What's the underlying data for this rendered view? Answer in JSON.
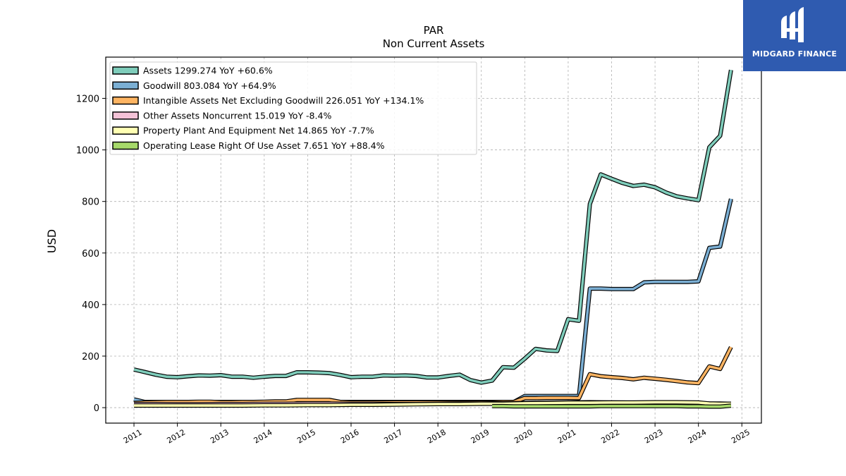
{
  "brand": {
    "name": "MIDGARD FINANCE",
    "color": "#2f5bb0",
    "icon": "midgard-logo-icon"
  },
  "chart_data": {
    "type": "line",
    "title": "PAR",
    "subtitle": "Non Current  Assets",
    "ylabel": "USD",
    "xlabel": "",
    "ylim": [
      -60,
      1360
    ],
    "xlim": [
      2010.35,
      2025.45
    ],
    "yticks": [
      0,
      200,
      400,
      600,
      800,
      1000,
      1200
    ],
    "xticks": [
      2011,
      2012,
      2013,
      2014,
      2015,
      2016,
      2017,
      2018,
      2019,
      2020,
      2021,
      2022,
      2023,
      2024,
      2025
    ],
    "grid": true,
    "legend_position": "top-left",
    "series": [
      {
        "name": "Assets  1299.274 YoY +60.6%",
        "color": "#7fcdbb",
        "x": [
          2011.0,
          2011.25,
          2011.5,
          2011.75,
          2012.0,
          2012.25,
          2012.5,
          2012.75,
          2013.0,
          2013.25,
          2013.5,
          2013.75,
          2014.0,
          2014.25,
          2014.5,
          2014.75,
          2015.0,
          2015.25,
          2015.5,
          2015.75,
          2016.0,
          2016.25,
          2016.5,
          2016.75,
          2017.0,
          2017.25,
          2017.5,
          2017.75,
          2018.0,
          2018.25,
          2018.5,
          2018.75,
          2019.0,
          2019.25,
          2019.5,
          2019.75,
          2020.0,
          2020.25,
          2020.5,
          2020.75,
          2021.0,
          2021.25,
          2021.5,
          2021.75,
          2022.0,
          2022.25,
          2022.5,
          2022.75,
          2023.0,
          2023.25,
          2023.5,
          2023.75,
          2024.0,
          2024.25,
          2024.5,
          2024.75
        ],
        "values": [
          148,
          138,
          128,
          120,
          118,
          122,
          125,
          124,
          126,
          120,
          120,
          116,
          120,
          123,
          123,
          137,
          137,
          136,
          134,
          127,
          118,
          120,
          120,
          125,
          124,
          125,
          123,
          117,
          117,
          123,
          128,
          107,
          97,
          105,
          157,
          155,
          190,
          228,
          222,
          220,
          343,
          337,
          790,
          905,
          888,
          872,
          860,
          865,
          855,
          835,
          820,
          812,
          805,
          1010,
          1055,
          1310
        ]
      },
      {
        "name": "Goodwill  803.084 YoY +64.9%",
        "color": "#7bafd4",
        "x": [
          2011.0,
          2011.25,
          2011.5,
          2011.75,
          2012.0,
          2012.25,
          2012.5,
          2012.75,
          2013.0,
          2013.25,
          2013.5,
          2013.75,
          2014.0,
          2014.25,
          2014.5,
          2014.75,
          2015.0,
          2015.25,
          2015.5,
          2015.75,
          2016.0,
          2016.25,
          2016.5,
          2016.75,
          2017.0,
          2017.25,
          2017.5,
          2017.75,
          2018.0,
          2018.25,
          2018.5,
          2018.75,
          2019.0,
          2019.25,
          2019.5,
          2019.75,
          2020.0,
          2020.25,
          2020.5,
          2020.75,
          2021.0,
          2021.25,
          2021.5,
          2021.75,
          2022.0,
          2022.25,
          2022.5,
          2022.75,
          2023.0,
          2023.25,
          2023.5,
          2023.75,
          2024.0,
          2024.25,
          2024.5,
          2024.75
        ],
        "values": [
          32,
          22,
          22,
          22,
          22,
          22,
          22,
          22,
          22,
          22,
          22,
          22,
          22,
          22,
          22,
          22,
          22,
          22,
          22,
          22,
          22,
          22,
          22,
          22,
          22,
          22,
          22,
          22,
          22,
          22,
          22,
          22,
          22,
          22,
          22,
          22,
          45,
          45,
          45,
          45,
          45,
          45,
          462,
          462,
          460,
          460,
          460,
          486,
          488,
          488,
          488,
          488,
          490,
          620,
          625,
          810
        ]
      },
      {
        "name": "Intangible Assets Net Excluding Goodwill  226.051 YoY +134.1%",
        "color": "#fdb462",
        "x": [
          2011.0,
          2011.25,
          2011.5,
          2011.75,
          2012.0,
          2012.25,
          2012.5,
          2012.75,
          2013.0,
          2013.25,
          2013.5,
          2013.75,
          2014.0,
          2014.25,
          2014.5,
          2014.75,
          2015.0,
          2015.25,
          2015.5,
          2015.75,
          2016.0,
          2016.25,
          2016.5,
          2016.75,
          2017.0,
          2017.25,
          2017.5,
          2017.75,
          2018.0,
          2018.25,
          2018.5,
          2018.75,
          2019.0,
          2019.25,
          2019.5,
          2019.75,
          2020.0,
          2020.25,
          2020.5,
          2020.75,
          2021.0,
          2021.25,
          2021.5,
          2021.75,
          2022.0,
          2022.25,
          2022.5,
          2022.75,
          2023.0,
          2023.25,
          2023.5,
          2023.75,
          2024.0,
          2024.25,
          2024.5,
          2024.75
        ],
        "values": [
          18,
          20,
          21,
          22,
          22,
          22,
          23,
          23,
          21,
          21,
          22,
          22,
          23,
          24,
          24,
          30,
          30,
          30,
          30,
          22,
          20,
          20,
          20,
          20,
          20,
          20,
          20,
          20,
          20,
          20,
          20,
          20,
          20,
          20,
          22,
          22,
          37,
          37,
          38,
          38,
          38,
          37,
          130,
          122,
          118,
          115,
          110,
          116,
          112,
          108,
          103,
          98,
          95,
          160,
          150,
          235
        ]
      },
      {
        "name": "Other Assets Noncurrent  15.019 YoY -8.4%",
        "color": "#f4c2d7",
        "x": [
          2011.0,
          2011.5,
          2012.0,
          2012.5,
          2013.0,
          2013.5,
          2014.0,
          2014.5,
          2015.0,
          2015.5,
          2016.0,
          2016.5,
          2017.0,
          2017.5,
          2018.0,
          2018.5,
          2019.0,
          2019.5,
          2020.0,
          2020.5,
          2021.0,
          2021.5,
          2022.0,
          2022.5,
          2023.0,
          2023.5,
          2024.0,
          2024.25,
          2024.5,
          2024.75
        ],
        "values": [
          14,
          14,
          13,
          13,
          14,
          14,
          15,
          15,
          16,
          16,
          15,
          15,
          14,
          14,
          15,
          16,
          16,
          17,
          18,
          19,
          20,
          21,
          20,
          19,
          19,
          18,
          17,
          16,
          16,
          15
        ]
      },
      {
        "name": "Property Plant And Equipment Net  14.865 YoY -7.7%",
        "color": "#ffffb3",
        "x": [
          2011.0,
          2011.5,
          2012.0,
          2012.5,
          2013.0,
          2013.5,
          2014.0,
          2014.5,
          2015.0,
          2015.5,
          2016.0,
          2016.5,
          2017.0,
          2017.5,
          2018.0,
          2018.5,
          2019.0,
          2019.5,
          2020.0,
          2020.5,
          2021.0,
          2021.5,
          2022.0,
          2022.5,
          2023.0,
          2023.5,
          2024.0,
          2024.25,
          2024.5,
          2024.75
        ],
        "values": [
          8,
          8,
          8,
          8,
          8,
          8,
          9,
          9,
          10,
          10,
          11,
          11,
          12,
          13,
          14,
          14,
          15,
          15,
          17,
          18,
          19,
          19,
          20,
          20,
          21,
          21,
          20,
          16,
          15,
          15
        ]
      },
      {
        "name": "Operating Lease Right Of Use Asset  7.651 YoY +88.4%",
        "color": "#a6d96a",
        "x": [
          2019.25,
          2019.5,
          2019.75,
          2020.0,
          2020.25,
          2020.5,
          2020.75,
          2021.0,
          2021.25,
          2021.5,
          2021.75,
          2022.0,
          2022.25,
          2022.5,
          2022.75,
          2023.0,
          2023.25,
          2023.5,
          2023.75,
          2024.0,
          2024.25,
          2024.5,
          2024.75
        ],
        "values": [
          6,
          6,
          5,
          5,
          5,
          5,
          5,
          5,
          5,
          5,
          6,
          6,
          6,
          6,
          6,
          6,
          6,
          6,
          5,
          5,
          4,
          4,
          7.651
        ]
      }
    ]
  }
}
